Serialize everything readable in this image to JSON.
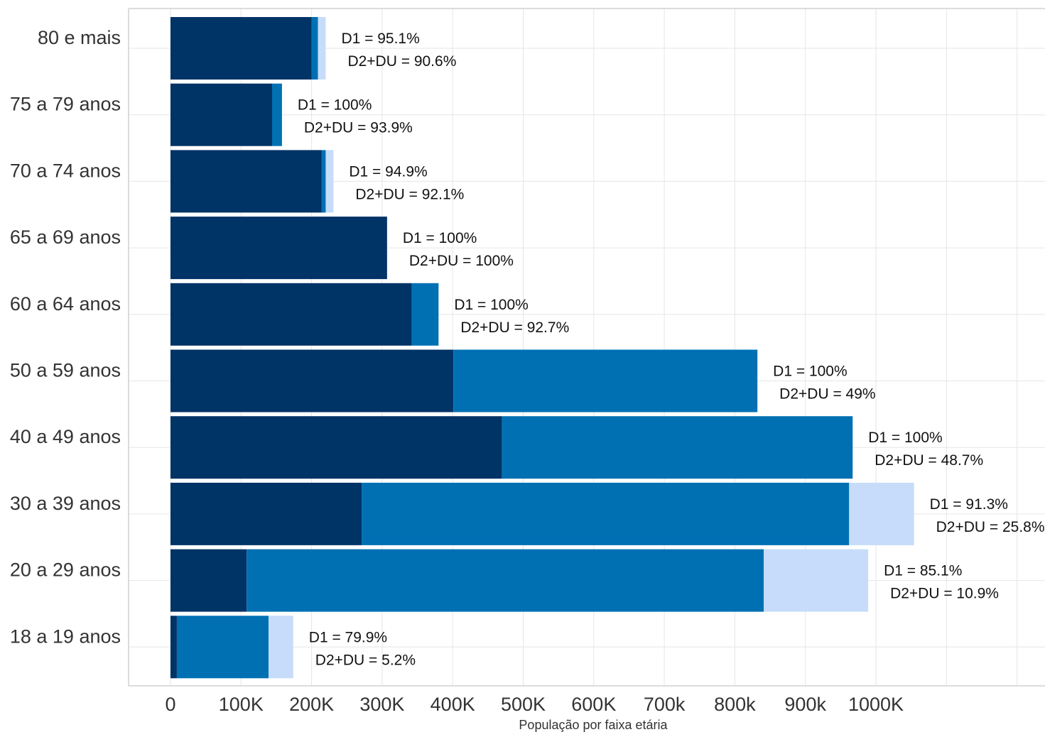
{
  "chart_data": {
    "type": "bar",
    "orientation": "horizontal",
    "stacked": true,
    "xlabel": "População por faixa etária",
    "ylabel": "",
    "xlim": [
      0,
      1240000
    ],
    "grid": true,
    "legend": "none",
    "x_ticks": [
      {
        "value": 0,
        "label": "0"
      },
      {
        "value": 100000,
        "label": "100K"
      },
      {
        "value": 200000,
        "label": "200K"
      },
      {
        "value": 300000,
        "label": "300K"
      },
      {
        "value": 400000,
        "label": "400K"
      },
      {
        "value": 500000,
        "label": "500K"
      },
      {
        "value": 600000,
        "label": "600K"
      },
      {
        "value": 700000,
        "label": "700k"
      },
      {
        "value": 800000,
        "label": "800k"
      },
      {
        "value": 900000,
        "label": "900k"
      },
      {
        "value": 1000000,
        "label": "1000K"
      }
    ],
    "categories": [
      "80 e mais",
      "75 a 79 anos",
      "70 a 74 anos",
      "65 a 69 anos",
      "60 a 64 anos",
      "50 a 59 anos",
      "40 a 49 anos",
      "30 a 39 anos",
      "20 a 29 anos",
      "18 a 19 anos"
    ],
    "series": [
      {
        "color": "#003366",
        "values": [
          200000,
          144000,
          214000,
          307000,
          342000,
          401000,
          470000,
          271000,
          108000,
          9000
        ]
      },
      {
        "color": "#0070b3",
        "values": [
          9000,
          14000,
          6000,
          0,
          38000,
          431000,
          497000,
          691000,
          733000,
          130000
        ]
      },
      {
        "color": "#c6dcfa",
        "values": [
          11000,
          0,
          11000,
          0,
          0,
          0,
          0,
          92000,
          148000,
          35000
        ]
      }
    ],
    "annotations": [
      {
        "d1": "D1 = 95.1%",
        "d2": "D2+DU = 90.6%"
      },
      {
        "d1": "D1 = 100%",
        "d2": "D2+DU = 93.9%"
      },
      {
        "d1": "D1 = 94.9%",
        "d2": "D2+DU = 92.1%"
      },
      {
        "d1": "D1 = 100%",
        "d2": "D2+DU = 100%"
      },
      {
        "d1": "D1 = 100%",
        "d2": "D2+DU = 92.7%"
      },
      {
        "d1": "D1 = 100%",
        "d2": "D2+DU = 49%"
      },
      {
        "d1": "D1 = 100%",
        "d2": "D2+DU = 48.7%"
      },
      {
        "d1": "D1 = 91.3%",
        "d2": "D2+DU = 25.8%"
      },
      {
        "d1": "D1 = 85.1%",
        "d2": "D2+DU = 10.9%"
      },
      {
        "d1": "D1 = 79.9%",
        "d2": "D2+DU = 5.2%"
      }
    ]
  }
}
